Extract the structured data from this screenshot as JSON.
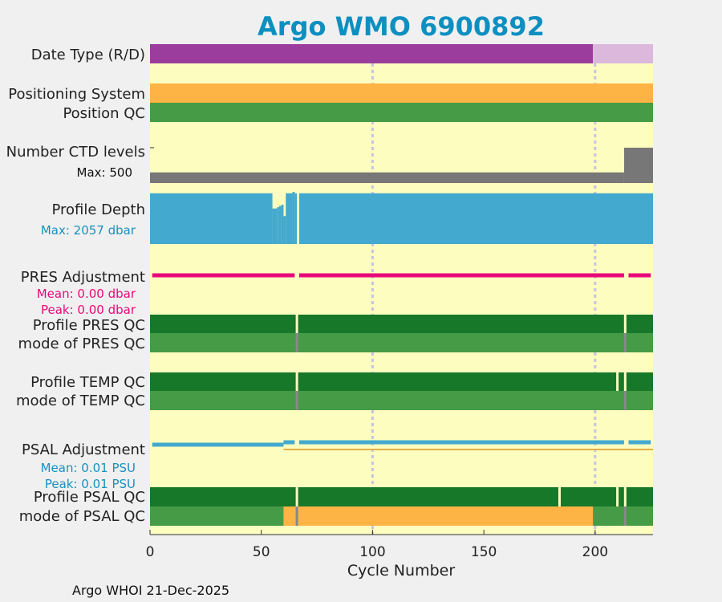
{
  "chart_data": {
    "type": "bar",
    "title": "Argo WMO 6900892",
    "xlabel": "Cycle Number",
    "xlim": [
      0,
      226
    ],
    "xticks": [
      0,
      50,
      100,
      150,
      200
    ],
    "footer": "Argo WHOI 21-Dec-2025",
    "grid": true,
    "rows": [
      {
        "key": "date_type",
        "label": "Date Type (R/D)",
        "segments": [
          {
            "from": 0,
            "to": 199,
            "value": "D",
            "color": "#9a3d9c"
          },
          {
            "from": 199,
            "to": 226,
            "value": "R",
            "color": "#dbb8dc"
          }
        ]
      },
      {
        "key": "positioning",
        "label": "Positioning System",
        "segments": [
          {
            "from": 0,
            "to": 226,
            "value": "GPS",
            "color": "#fdb444"
          }
        ]
      },
      {
        "key": "position_qc",
        "label": "Position QC",
        "segments": [
          {
            "from": 0,
            "to": 226,
            "value": "1",
            "color": "#469b46"
          }
        ]
      },
      {
        "key": "ctd_levels",
        "label": "Number CTD levels",
        "sublabel": "Max: 500",
        "sublabel_color": "#111111",
        "color": "#777777",
        "max": 500,
        "segments": [
          {
            "from": 0,
            "to": 213,
            "value": 150
          },
          {
            "from": 213,
            "to": 226,
            "value": 500
          }
        ]
      },
      {
        "key": "profile_depth",
        "label": "Profile Depth",
        "sublabel": "Max: 2057 dbar",
        "sublabel_color": "#1990bf",
        "color": "#43a9ce",
        "max": 2057,
        "segments": [
          {
            "from": 0,
            "to": 55,
            "value": 2000
          },
          {
            "from": 55,
            "to": 57,
            "value": 1400
          },
          {
            "from": 57,
            "to": 58,
            "value": 1450
          },
          {
            "from": 58,
            "to": 59,
            "value": 1500
          },
          {
            "from": 59,
            "to": 60,
            "value": 1550
          },
          {
            "from": 60,
            "to": 61,
            "value": 1100
          },
          {
            "from": 61,
            "to": 64,
            "value": 2000
          },
          {
            "from": 64,
            "to": 65,
            "value": 2057
          },
          {
            "from": 65,
            "to": 66,
            "value": 2000
          },
          {
            "from": 67,
            "to": 226,
            "value": 2000
          }
        ]
      },
      {
        "key": "pres_adj",
        "label": "PRES Adjustment",
        "color": "#e8097a",
        "sublabels": [
          {
            "text": "Mean: 0.00 dbar",
            "color": "#e8097a"
          },
          {
            "text": "Peak: 0.00 dbar",
            "color": "#e8097a"
          }
        ],
        "segments": [
          {
            "from": 1,
            "to": 65,
            "value": 0
          },
          {
            "from": 67,
            "to": 213,
            "value": 0
          },
          {
            "from": 215,
            "to": 225,
            "value": 0
          }
        ]
      },
      {
        "key": "profile_pres_qc",
        "label": "Profile PRES QC",
        "segments": [
          {
            "from": 0,
            "to": 226,
            "value": "A",
            "color": "#17782a"
          }
        ],
        "gaps": [
          66,
          213.5
        ]
      },
      {
        "key": "mode_pres_qc",
        "label": "mode of PRES QC",
        "segments": [
          {
            "from": 0,
            "to": 226,
            "value": "1",
            "color": "#469b46"
          }
        ],
        "gaps": [
          66,
          213.5
        ]
      },
      {
        "key": "profile_temp_qc",
        "label": "Profile TEMP QC",
        "segments": [
          {
            "from": 0,
            "to": 226,
            "value": "A",
            "color": "#17782a"
          }
        ],
        "gaps": [
          66,
          210,
          213.5
        ]
      },
      {
        "key": "mode_temp_qc",
        "label": "mode of TEMP QC",
        "segments": [
          {
            "from": 0,
            "to": 226,
            "value": "1",
            "color": "#469b46"
          }
        ],
        "gaps": [
          66,
          213.5
        ]
      },
      {
        "key": "psal_adj",
        "label": "PSAL Adjustment",
        "color": "#43a9ce",
        "sublabels": [
          {
            "text": "Mean: 0.01 PSU",
            "color": "#1990bf"
          },
          {
            "text": "Peak: 0.01 PSU",
            "color": "#1990bf"
          }
        ],
        "segments": [
          {
            "from": 1,
            "to": 60,
            "value": 0
          },
          {
            "from": 60,
            "to": 65,
            "value": 0.01
          },
          {
            "from": 67,
            "to": 213,
            "value": 0.01
          },
          {
            "from": 215,
            "to": 225,
            "value": 0.01
          }
        ]
      },
      {
        "key": "profile_psal_qc",
        "label": "Profile PSAL QC",
        "segments": [
          {
            "from": 0,
            "to": 226,
            "value": "A",
            "color": "#17782a"
          }
        ],
        "gaps": [
          66,
          184,
          210,
          213.5
        ]
      },
      {
        "key": "mode_psal_qc",
        "label": "mode of PSAL QC",
        "segments": [
          {
            "from": 0,
            "to": 60,
            "value": "1",
            "color": "#469b46"
          },
          {
            "from": 60,
            "to": 199,
            "value": "3",
            "color": "#fdb444"
          },
          {
            "from": 199,
            "to": 226,
            "value": "1",
            "color": "#469b46"
          }
        ],
        "gaps": [
          66,
          213.5
        ]
      }
    ]
  }
}
